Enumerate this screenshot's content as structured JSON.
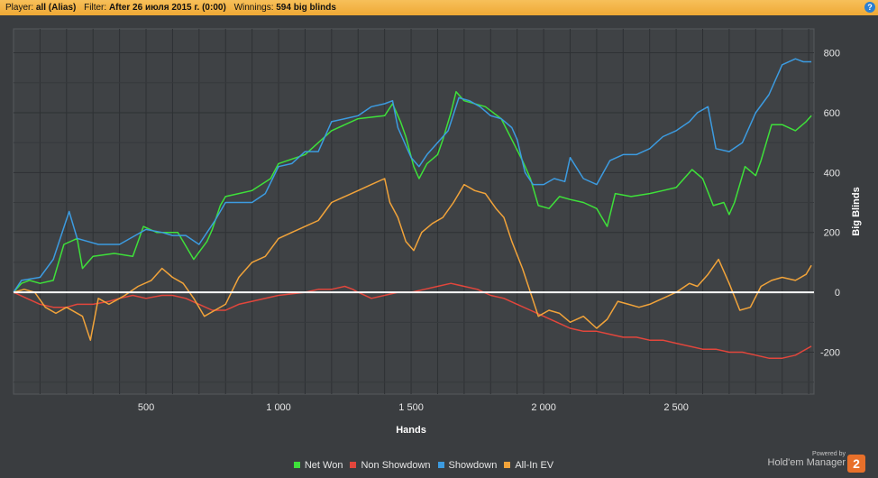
{
  "header": {
    "player_label": "Player:",
    "player_value": "all (Alias)",
    "filter_label": "Filter:",
    "filter_value": "After 26 июля 2015 г. (0:00)",
    "winnings_label": "Winnings:",
    "winnings_value": "594 big blinds",
    "help_glyph": "?"
  },
  "brand": {
    "powered": "Powered by",
    "name": "Hold'em Manager",
    "logo_text": "2"
  },
  "chart_data": {
    "type": "line",
    "xlabel": "Hands",
    "ylabel": "Big Blinds",
    "xlim": [
      0,
      3020
    ],
    "ylim": [
      -340,
      880
    ],
    "x_ticks": [
      500,
      1000,
      1500,
      2000,
      2500
    ],
    "x_tick_labels": [
      "500",
      "1 000",
      "1 500",
      "2 000",
      "2 500"
    ],
    "y_ticks": [
      -200,
      0,
      200,
      400,
      600,
      800
    ],
    "y_tick_labels": [
      "-200",
      "0",
      "200",
      "400",
      "600",
      "800"
    ],
    "grid": true,
    "legend_position": "bottom",
    "series": [
      {
        "name": "Net Won",
        "color": "#3ee03a",
        "points": [
          [
            0,
            0
          ],
          [
            30,
            30
          ],
          [
            60,
            40
          ],
          [
            100,
            30
          ],
          [
            150,
            40
          ],
          [
            190,
            160
          ],
          [
            240,
            180
          ],
          [
            260,
            80
          ],
          [
            300,
            120
          ],
          [
            380,
            130
          ],
          [
            450,
            120
          ],
          [
            490,
            220
          ],
          [
            540,
            200
          ],
          [
            620,
            200
          ],
          [
            680,
            110
          ],
          [
            730,
            170
          ],
          [
            750,
            210
          ],
          [
            780,
            290
          ],
          [
            800,
            320
          ],
          [
            900,
            340
          ],
          [
            970,
            380
          ],
          [
            1000,
            430
          ],
          [
            1100,
            460
          ],
          [
            1200,
            540
          ],
          [
            1300,
            580
          ],
          [
            1400,
            590
          ],
          [
            1430,
            630
          ],
          [
            1460,
            570
          ],
          [
            1480,
            520
          ],
          [
            1510,
            420
          ],
          [
            1530,
            380
          ],
          [
            1560,
            430
          ],
          [
            1600,
            460
          ],
          [
            1620,
            510
          ],
          [
            1650,
            600
          ],
          [
            1670,
            670
          ],
          [
            1700,
            640
          ],
          [
            1780,
            620
          ],
          [
            1840,
            580
          ],
          [
            1880,
            510
          ],
          [
            1920,
            440
          ],
          [
            1950,
            380
          ],
          [
            1980,
            290
          ],
          [
            2020,
            280
          ],
          [
            2060,
            320
          ],
          [
            2100,
            310
          ],
          [
            2150,
            300
          ],
          [
            2200,
            280
          ],
          [
            2240,
            220
          ],
          [
            2270,
            330
          ],
          [
            2330,
            320
          ],
          [
            2400,
            330
          ],
          [
            2450,
            340
          ],
          [
            2500,
            350
          ],
          [
            2560,
            410
          ],
          [
            2600,
            380
          ],
          [
            2640,
            290
          ],
          [
            2680,
            300
          ],
          [
            2700,
            260
          ],
          [
            2720,
            300
          ],
          [
            2760,
            420
          ],
          [
            2800,
            390
          ],
          [
            2820,
            440
          ],
          [
            2860,
            560
          ],
          [
            2900,
            560
          ],
          [
            2950,
            540
          ],
          [
            2990,
            570
          ],
          [
            3010,
            590
          ]
        ]
      },
      {
        "name": "Non Showdown",
        "color": "#e2463c",
        "points": [
          [
            0,
            0
          ],
          [
            50,
            -20
          ],
          [
            100,
            -40
          ],
          [
            150,
            -50
          ],
          [
            200,
            -50
          ],
          [
            240,
            -40
          ],
          [
            300,
            -40
          ],
          [
            360,
            -30
          ],
          [
            400,
            -20
          ],
          [
            450,
            -10
          ],
          [
            500,
            -20
          ],
          [
            560,
            -10
          ],
          [
            600,
            -10
          ],
          [
            650,
            -20
          ],
          [
            700,
            -40
          ],
          [
            750,
            -60
          ],
          [
            800,
            -60
          ],
          [
            850,
            -40
          ],
          [
            900,
            -30
          ],
          [
            1000,
            -10
          ],
          [
            1100,
            0
          ],
          [
            1150,
            10
          ],
          [
            1200,
            10
          ],
          [
            1250,
            20
          ],
          [
            1280,
            10
          ],
          [
            1300,
            0
          ],
          [
            1350,
            -20
          ],
          [
            1400,
            -10
          ],
          [
            1450,
            0
          ],
          [
            1500,
            0
          ],
          [
            1550,
            10
          ],
          [
            1600,
            20
          ],
          [
            1650,
            30
          ],
          [
            1700,
            20
          ],
          [
            1750,
            10
          ],
          [
            1800,
            -10
          ],
          [
            1850,
            -20
          ],
          [
            1900,
            -40
          ],
          [
            1950,
            -60
          ],
          [
            2000,
            -80
          ],
          [
            2050,
            -100
          ],
          [
            2100,
            -120
          ],
          [
            2150,
            -130
          ],
          [
            2200,
            -130
          ],
          [
            2250,
            -140
          ],
          [
            2300,
            -150
          ],
          [
            2350,
            -150
          ],
          [
            2400,
            -160
          ],
          [
            2450,
            -160
          ],
          [
            2500,
            -170
          ],
          [
            2550,
            -180
          ],
          [
            2600,
            -190
          ],
          [
            2650,
            -190
          ],
          [
            2700,
            -200
          ],
          [
            2750,
            -200
          ],
          [
            2800,
            -210
          ],
          [
            2850,
            -220
          ],
          [
            2900,
            -220
          ],
          [
            2950,
            -210
          ],
          [
            3010,
            -180
          ]
        ]
      },
      {
        "name": "Showdown",
        "color": "#3c9be0",
        "points": [
          [
            0,
            0
          ],
          [
            30,
            40
          ],
          [
            100,
            50
          ],
          [
            150,
            110
          ],
          [
            210,
            270
          ],
          [
            240,
            180
          ],
          [
            280,
            170
          ],
          [
            320,
            160
          ],
          [
            360,
            160
          ],
          [
            400,
            160
          ],
          [
            500,
            210
          ],
          [
            560,
            200
          ],
          [
            600,
            190
          ],
          [
            650,
            190
          ],
          [
            700,
            160
          ],
          [
            760,
            240
          ],
          [
            800,
            300
          ],
          [
            900,
            300
          ],
          [
            950,
            330
          ],
          [
            1000,
            420
          ],
          [
            1050,
            430
          ],
          [
            1100,
            470
          ],
          [
            1150,
            470
          ],
          [
            1200,
            570
          ],
          [
            1250,
            580
          ],
          [
            1300,
            590
          ],
          [
            1350,
            620
          ],
          [
            1400,
            630
          ],
          [
            1430,
            640
          ],
          [
            1450,
            550
          ],
          [
            1480,
            490
          ],
          [
            1500,
            450
          ],
          [
            1530,
            420
          ],
          [
            1560,
            460
          ],
          [
            1600,
            500
          ],
          [
            1640,
            540
          ],
          [
            1680,
            650
          ],
          [
            1720,
            640
          ],
          [
            1760,
            620
          ],
          [
            1800,
            590
          ],
          [
            1840,
            580
          ],
          [
            1880,
            550
          ],
          [
            1900,
            510
          ],
          [
            1930,
            400
          ],
          [
            1960,
            360
          ],
          [
            2000,
            360
          ],
          [
            2040,
            380
          ],
          [
            2080,
            370
          ],
          [
            2100,
            450
          ],
          [
            2150,
            380
          ],
          [
            2200,
            360
          ],
          [
            2250,
            440
          ],
          [
            2300,
            460
          ],
          [
            2350,
            460
          ],
          [
            2400,
            480
          ],
          [
            2450,
            520
          ],
          [
            2500,
            540
          ],
          [
            2550,
            570
          ],
          [
            2580,
            600
          ],
          [
            2620,
            620
          ],
          [
            2650,
            480
          ],
          [
            2700,
            470
          ],
          [
            2750,
            500
          ],
          [
            2800,
            600
          ],
          [
            2850,
            660
          ],
          [
            2900,
            760
          ],
          [
            2950,
            780
          ],
          [
            2980,
            770
          ],
          [
            3010,
            770
          ]
        ]
      },
      {
        "name": "All-In EV",
        "color": "#f1a33a",
        "points": [
          [
            0,
            0
          ],
          [
            40,
            10
          ],
          [
            80,
            0
          ],
          [
            120,
            -50
          ],
          [
            160,
            -70
          ],
          [
            200,
            -50
          ],
          [
            260,
            -80
          ],
          [
            290,
            -160
          ],
          [
            320,
            -20
          ],
          [
            360,
            -40
          ],
          [
            420,
            -10
          ],
          [
            470,
            20
          ],
          [
            520,
            40
          ],
          [
            560,
            80
          ],
          [
            600,
            50
          ],
          [
            640,
            30
          ],
          [
            680,
            -20
          ],
          [
            720,
            -80
          ],
          [
            760,
            -60
          ],
          [
            800,
            -40
          ],
          [
            850,
            50
          ],
          [
            900,
            100
          ],
          [
            950,
            120
          ],
          [
            1000,
            180
          ],
          [
            1050,
            200
          ],
          [
            1100,
            220
          ],
          [
            1150,
            240
          ],
          [
            1200,
            300
          ],
          [
            1250,
            320
          ],
          [
            1300,
            340
          ],
          [
            1350,
            360
          ],
          [
            1400,
            380
          ],
          [
            1420,
            300
          ],
          [
            1450,
            250
          ],
          [
            1480,
            170
          ],
          [
            1510,
            140
          ],
          [
            1540,
            200
          ],
          [
            1580,
            230
          ],
          [
            1620,
            250
          ],
          [
            1660,
            300
          ],
          [
            1700,
            360
          ],
          [
            1740,
            340
          ],
          [
            1780,
            330
          ],
          [
            1820,
            280
          ],
          [
            1850,
            250
          ],
          [
            1880,
            170
          ],
          [
            1920,
            80
          ],
          [
            1950,
            0
          ],
          [
            1980,
            -80
          ],
          [
            2020,
            -60
          ],
          [
            2060,
            -70
          ],
          [
            2100,
            -100
          ],
          [
            2150,
            -80
          ],
          [
            2200,
            -120
          ],
          [
            2240,
            -90
          ],
          [
            2280,
            -30
          ],
          [
            2320,
            -40
          ],
          [
            2360,
            -50
          ],
          [
            2400,
            -40
          ],
          [
            2450,
            -20
          ],
          [
            2500,
            0
          ],
          [
            2550,
            30
          ],
          [
            2580,
            20
          ],
          [
            2620,
            60
          ],
          [
            2660,
            110
          ],
          [
            2700,
            30
          ],
          [
            2740,
            -60
          ],
          [
            2780,
            -50
          ],
          [
            2820,
            20
          ],
          [
            2860,
            40
          ],
          [
            2900,
            50
          ],
          [
            2950,
            40
          ],
          [
            2990,
            60
          ],
          [
            3010,
            90
          ]
        ]
      }
    ]
  }
}
